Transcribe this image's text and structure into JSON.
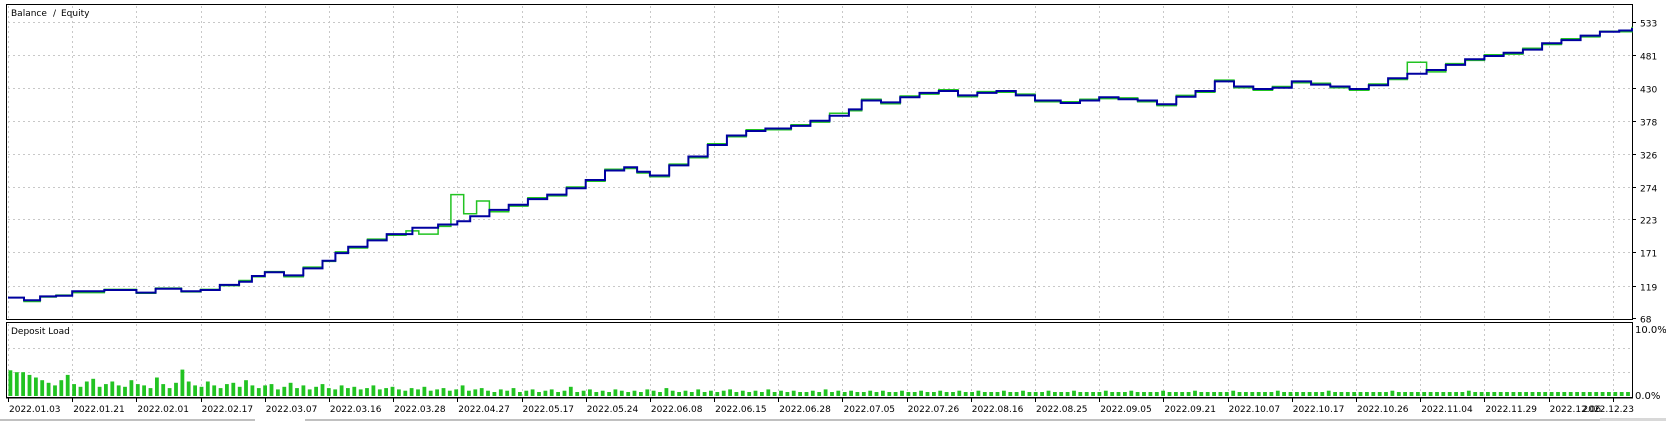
{
  "colors": {
    "balance": "#0000a0",
    "equity": "#22c322",
    "deposit_bar": "#22c322",
    "grid": "#c8c8c8",
    "frame": "#000000"
  },
  "legend": {
    "balance": "Balance",
    "separator": "/",
    "equity": "Equity"
  },
  "deposit_panel": {
    "title": "Deposit Load",
    "y_ticks": [
      "10.0%",
      "0.0%"
    ],
    "ylim": [
      0,
      10
    ]
  },
  "chart_data": [
    {
      "type": "line",
      "title": "",
      "ylim": [
        68,
        546
      ],
      "y_ticks": [
        533,
        481,
        430,
        378,
        326,
        274,
        223,
        171,
        119,
        68
      ],
      "x_tick_labels": [
        "2022.01.03",
        "2022.01.21",
        "2022.02.01",
        "2022.02.17",
        "2022.03.07",
        "2022.03.16",
        "2022.03.28",
        "2022.04.27",
        "2022.05.17",
        "2022.05.24",
        "2022.06.08",
        "2022.06.15",
        "2022.06.28",
        "2022.07.05",
        "2022.07.26",
        "2022.08.16",
        "2022.08.25",
        "2022.09.05",
        "2022.09.21",
        "2022.10.07",
        "2022.10.17",
        "2022.10.26",
        "2022.11.04",
        "2022.11.29",
        "2022.12.06",
        "2022.12.23"
      ],
      "x_max_index": 25.3,
      "series": [
        {
          "name": "Balance",
          "color": "#0000a0",
          "points": [
            [
              0,
              100
            ],
            [
              0.25,
              96
            ],
            [
              0.5,
              102
            ],
            [
              0.75,
              103
            ],
            [
              1,
              110
            ],
            [
              1.5,
              112
            ],
            [
              2,
              108
            ],
            [
              2.3,
              114
            ],
            [
              2.7,
              110
            ],
            [
              3,
              112
            ],
            [
              3.3,
              120
            ],
            [
              3.6,
              125
            ],
            [
              3.8,
              134
            ],
            [
              4,
              140
            ],
            [
              4.3,
              135
            ],
            [
              4.6,
              146
            ],
            [
              4.9,
              158
            ],
            [
              5.1,
              170
            ],
            [
              5.3,
              180
            ],
            [
              5.6,
              190
            ],
            [
              5.9,
              200
            ],
            [
              6.3,
              210
            ],
            [
              6.7,
              215
            ],
            [
              7,
              220
            ],
            [
              7.2,
              228
            ],
            [
              7.5,
              238
            ],
            [
              7.8,
              246
            ],
            [
              8.1,
              255
            ],
            [
              8.4,
              262
            ],
            [
              8.7,
              272
            ],
            [
              9,
              285
            ],
            [
              9.3,
              300
            ],
            [
              9.6,
              305
            ],
            [
              9.8,
              298
            ],
            [
              10,
              292
            ],
            [
              10.3,
              308
            ],
            [
              10.6,
              322
            ],
            [
              10.9,
              340
            ],
            [
              11.2,
              355
            ],
            [
              11.5,
              362
            ],
            [
              11.8,
              366
            ],
            [
              12.2,
              370
            ],
            [
              12.5,
              378
            ],
            [
              12.8,
              386
            ],
            [
              13.1,
              396
            ],
            [
              13.3,
              410
            ],
            [
              13.6,
              407
            ],
            [
              13.9,
              415
            ],
            [
              14.2,
              422
            ],
            [
              14.5,
              425
            ],
            [
              14.8,
              418
            ],
            [
              15.1,
              422
            ],
            [
              15.4,
              425
            ],
            [
              15.7,
              418
            ],
            [
              16,
              410
            ],
            [
              16.4,
              406
            ],
            [
              16.7,
              410
            ],
            [
              17,
              415
            ],
            [
              17.3,
              412
            ],
            [
              17.6,
              410
            ],
            [
              17.9,
              404
            ],
            [
              18.2,
              416
            ],
            [
              18.5,
              425
            ],
            [
              18.8,
              440
            ],
            [
              19.1,
              432
            ],
            [
              19.4,
              428
            ],
            [
              19.7,
              430
            ],
            [
              20,
              440
            ],
            [
              20.3,
              435
            ],
            [
              20.6,
              432
            ],
            [
              20.9,
              428
            ],
            [
              21.2,
              434
            ],
            [
              21.5,
              445
            ],
            [
              21.8,
              452
            ],
            [
              22.1,
              458
            ],
            [
              22.4,
              466
            ],
            [
              22.7,
              475
            ],
            [
              23,
              480
            ],
            [
              23.3,
              485
            ],
            [
              23.6,
              490
            ],
            [
              23.9,
              500
            ],
            [
              24.2,
              505
            ],
            [
              24.5,
              512
            ],
            [
              24.8,
              518
            ],
            [
              25.1,
              520
            ],
            [
              25.3,
              524
            ]
          ]
        },
        {
          "name": "Equity",
          "color": "#22c322",
          "points": [
            [
              0,
              100
            ],
            [
              0.25,
              94
            ],
            [
              0.5,
              101
            ],
            [
              0.75,
              104
            ],
            [
              1,
              108
            ],
            [
              1.5,
              113
            ],
            [
              2,
              107
            ],
            [
              2.3,
              115
            ],
            [
              2.7,
              109
            ],
            [
              3,
              113
            ],
            [
              3.3,
              119
            ],
            [
              3.6,
              127
            ],
            [
              3.8,
              133
            ],
            [
              4,
              141
            ],
            [
              4.3,
              133
            ],
            [
              4.6,
              148
            ],
            [
              4.9,
              157
            ],
            [
              5.1,
              172
            ],
            [
              5.3,
              178
            ],
            [
              5.6,
              192
            ],
            [
              5.9,
              198
            ],
            [
              6.2,
              205
            ],
            [
              6.4,
              200
            ],
            [
              6.7,
              212
            ],
            [
              6.9,
              262
            ],
            [
              7.1,
              232
            ],
            [
              7.3,
              252
            ],
            [
              7.5,
              235
            ],
            [
              7.8,
              244
            ],
            [
              8.1,
              257
            ],
            [
              8.4,
              260
            ],
            [
              8.7,
              274
            ],
            [
              9,
              283
            ],
            [
              9.3,
              302
            ],
            [
              9.6,
              303
            ],
            [
              9.8,
              296
            ],
            [
              10,
              290
            ],
            [
              10.3,
              310
            ],
            [
              10.6,
              320
            ],
            [
              10.9,
              342
            ],
            [
              11.2,
              353
            ],
            [
              11.5,
              364
            ],
            [
              11.8,
              364
            ],
            [
              12.2,
              372
            ],
            [
              12.5,
              376
            ],
            [
              12.8,
              390
            ],
            [
              13.1,
              394
            ],
            [
              13.3,
              412
            ],
            [
              13.6,
              405
            ],
            [
              13.9,
              417
            ],
            [
              14.2,
              420
            ],
            [
              14.5,
              427
            ],
            [
              14.8,
              416
            ],
            [
              15.1,
              424
            ],
            [
              15.4,
              423
            ],
            [
              15.7,
              420
            ],
            [
              16,
              408
            ],
            [
              16.4,
              408
            ],
            [
              16.7,
              412
            ],
            [
              17,
              413
            ],
            [
              17.3,
              414
            ],
            [
              17.6,
              408
            ],
            [
              17.9,
              402
            ],
            [
              18.2,
              418
            ],
            [
              18.5,
              423
            ],
            [
              18.8,
              442
            ],
            [
              19.1,
              430
            ],
            [
              19.4,
              426
            ],
            [
              19.7,
              432
            ],
            [
              20,
              438
            ],
            [
              20.3,
              437
            ],
            [
              20.6,
              430
            ],
            [
              20.9,
              426
            ],
            [
              21.2,
              436
            ],
            [
              21.5,
              443
            ],
            [
              21.8,
              470
            ],
            [
              22.1,
              455
            ],
            [
              22.4,
              468
            ],
            [
              22.7,
              473
            ],
            [
              23,
              482
            ],
            [
              23.3,
              483
            ],
            [
              23.6,
              492
            ],
            [
              23.9,
              498
            ],
            [
              24.2,
              507
            ],
            [
              24.5,
              510
            ],
            [
              24.8,
              519
            ],
            [
              25.1,
              518
            ],
            [
              25.3,
              526
            ]
          ]
        }
      ]
    },
    {
      "type": "bar",
      "title": "Deposit Load",
      "ylim": [
        0,
        10
      ],
      "bar_pattern": [
        3.9,
        3.6,
        3.6,
        3.2,
        2.8,
        2.4,
        2.0,
        1.6,
        2.4,
        3.2,
        1.8,
        1.4,
        2.2,
        2.6,
        1.4,
        1.8,
        2.2,
        1.6,
        1.4,
        2.4,
        1.8,
        1.6,
        1.2,
        2.8,
        1.8,
        1.2,
        2.0,
        4.0,
        2.2,
        1.6,
        1.4,
        2.2,
        1.6,
        1.2,
        1.8,
        2.0,
        1.4,
        2.4,
        1.6,
        1.2,
        1.6,
        1.8,
        1.0,
        1.4,
        2.0,
        1.2,
        1.6,
        1.0,
        1.4,
        1.8,
        1.2,
        1.0,
        1.6,
        1.2,
        1.4,
        1.0,
        1.2,
        1.6,
        1.0,
        1.2,
        1.4,
        1.0,
        0.8,
        1.2,
        1.0,
        1.4,
        0.8,
        1.0,
        1.2,
        0.8,
        1.0,
        1.6,
        0.8,
        1.0,
        1.2,
        0.8,
        0.6,
        1.0,
        0.8,
        1.2,
        0.6,
        0.8,
        1.0,
        0.6,
        0.8,
        1.0,
        0.6,
        0.8,
        1.4,
        0.6,
        0.8,
        1.0,
        0.6,
        0.8,
        0.6,
        1.0,
        0.8,
        0.6,
        0.8,
        0.6,
        1.0,
        0.8,
        0.6,
        1.2,
        0.8,
        0.6,
        0.8,
        0.6,
        1.0,
        0.6,
        0.8,
        0.6,
        0.8,
        1.0,
        0.6,
        0.8,
        0.6,
        0.8,
        0.6,
        1.0,
        0.6,
        0.8,
        0.6,
        0.8,
        0.6,
        0.6,
        0.8,
        0.6,
        1.0,
        0.6,
        0.8,
        0.6,
        0.8,
        0.6,
        0.6,
        0.8,
        0.6,
        0.8,
        0.6,
        0.6,
        0.8,
        0.6,
        0.6,
        0.8,
        0.6,
        0.6,
        0.8,
        0.6,
        0.6,
        0.8,
        0.6,
        0.6,
        0.8,
        0.6,
        0.6,
        0.6,
        0.8,
        0.6,
        0.6,
        0.8,
        0.6,
        0.6,
        0.6,
        0.8,
        0.6,
        0.6,
        0.6,
        0.8,
        0.6,
        0.6,
        0.6,
        0.6,
        0.8,
        0.6,
        0.6,
        0.6,
        0.8,
        0.6,
        0.6,
        0.6,
        0.6,
        0.8,
        0.6,
        0.6,
        0.6,
        0.6,
        0.8,
        0.6,
        0.6,
        0.6,
        0.6,
        0.6,
        0.8,
        0.6,
        0.6,
        0.6,
        0.6,
        0.6,
        0.6,
        0.8,
        0.6,
        0.6,
        0.6,
        0.6,
        0.6,
        0.6,
        0.6,
        0.8,
        0.6,
        0.6,
        0.6,
        0.6,
        0.6,
        0.6,
        0.6,
        0.6,
        0.6,
        0.8,
        0.6,
        0.6,
        0.6,
        0.6,
        0.6,
        0.6,
        0.6,
        0.6,
        0.6,
        0.6,
        0.6,
        0.8,
        0.6,
        0.6,
        0.6,
        0.6,
        0.6,
        0.6,
        0.6,
        0.6,
        0.6,
        0.6,
        0.6,
        0.6,
        0.6,
        0.6,
        0.6,
        0.6,
        0.6,
        0.6,
        0.6,
        0.6,
        0.6,
        0.6,
        0.6,
        0.6,
        0.6
      ]
    }
  ]
}
